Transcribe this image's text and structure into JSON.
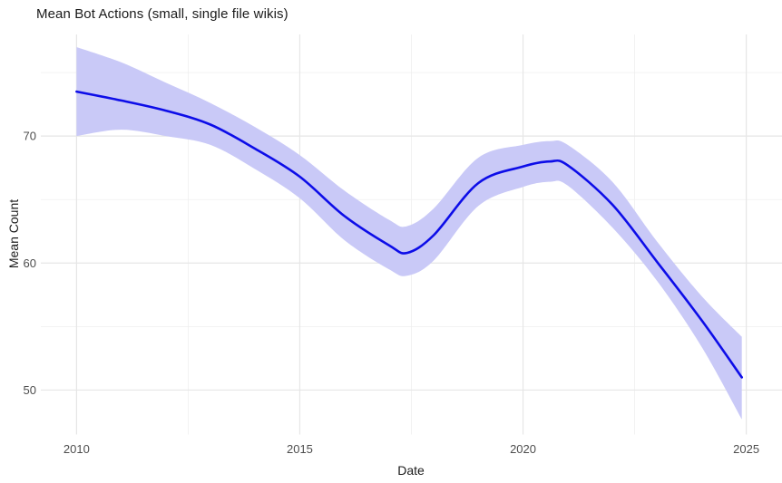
{
  "chart_data": {
    "type": "line",
    "subtype": "smoothed-trend-with-confidence-ribbon",
    "title": "Mean Bot Actions (small, single file wikis)",
    "xlabel": "Date",
    "ylabel": "Mean Count",
    "x_ticks": [
      2010,
      2015,
      2020,
      2025
    ],
    "x_minor_gridlines": [
      2012.5,
      2017.5,
      2022.5
    ],
    "y_ticks": [
      50,
      60,
      70
    ],
    "y_minor_gridlines": [
      55,
      65,
      75
    ],
    "xlim": [
      2009.2,
      2025.8
    ],
    "ylim": [
      46.5,
      78.0
    ],
    "grid": "on",
    "legend": "none",
    "series": [
      {
        "name": "mean-bot-actions",
        "x": [
          2010,
          2011,
          2012,
          2013,
          2014,
          2015,
          2016,
          2017,
          2017.4,
          2018,
          2019,
          2020,
          2020.6,
          2021,
          2022,
          2023,
          2024,
          2024.9
        ],
        "y": [
          73.5,
          72.8,
          72.0,
          70.9,
          69.0,
          66.8,
          63.7,
          61.4,
          60.8,
          62.2,
          66.3,
          67.6,
          68.0,
          67.7,
          64.6,
          60.1,
          55.5,
          51.0
        ],
        "ci_lower": [
          70.0,
          70.5,
          70.0,
          69.3,
          67.4,
          65.1,
          61.8,
          59.5,
          59.0,
          60.2,
          64.5,
          66.0,
          66.4,
          66.1,
          62.8,
          58.6,
          53.4,
          47.7
        ],
        "ci_upper": [
          77.0,
          75.8,
          74.2,
          72.6,
          70.7,
          68.5,
          65.7,
          63.4,
          62.9,
          64.3,
          68.3,
          69.3,
          69.6,
          69.3,
          66.4,
          61.7,
          57.4,
          54.2
        ]
      }
    ],
    "colors": {
      "line": "#0D0DE8",
      "ribbon": "#C9C9F7",
      "grid_major": "#E6E6E6",
      "grid_minor": "#EDEDED",
      "tick_text": "#4D4D4D",
      "axis_title_text": "#1A1A1A",
      "title_text": "#1A1A1A",
      "background": "#FFFFFF"
    }
  }
}
